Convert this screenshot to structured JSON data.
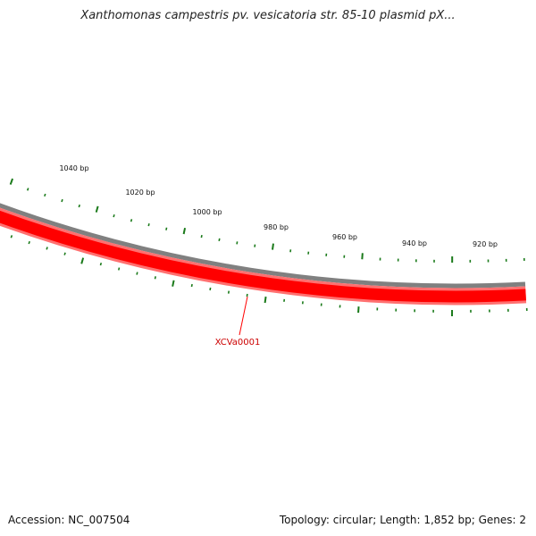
{
  "title": "Xanthomonas campestris pv. vesicatoria str. 85-10 plasmid pX...",
  "accession": "Accession: NC_007504",
  "summary": "Topology: circular; Length: 1,852 bp; Genes: 2",
  "tick_labels": [
    "1040 bp",
    "1020 bp",
    "1000 bp",
    "980 bp",
    "960 bp",
    "940 bp",
    "920 bp"
  ],
  "gene": {
    "name": "XCVa0001",
    "color": "#ff0000"
  },
  "colors": {
    "ticks": "#1a7a1a",
    "backbone": "#808080",
    "gene_track": "#ff0000",
    "gene_label": "#cc0000"
  }
}
